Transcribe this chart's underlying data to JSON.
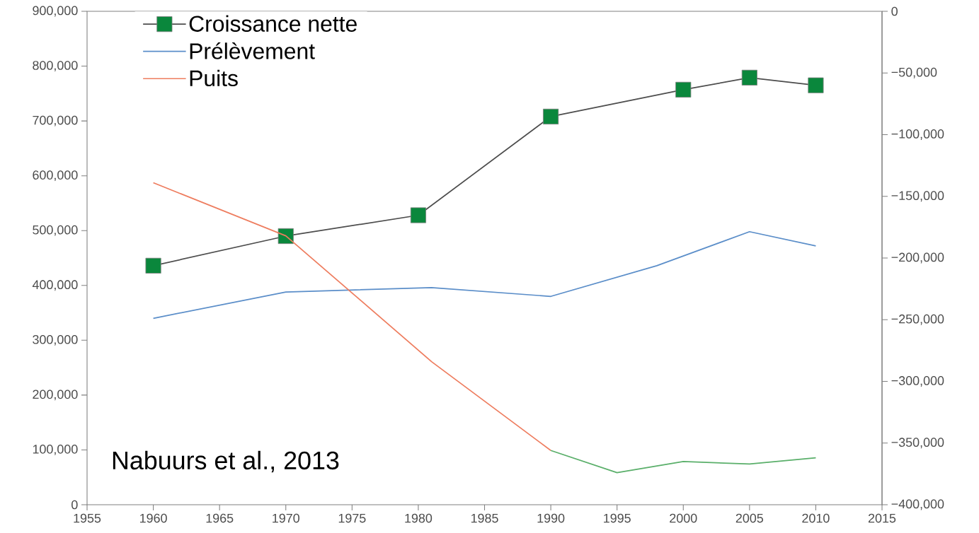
{
  "chart_data": {
    "type": "line",
    "xlim": [
      1955,
      2015
    ],
    "xticks": [
      1955,
      1960,
      1965,
      1970,
      1975,
      1980,
      1985,
      1990,
      1995,
      2000,
      2005,
      2010,
      2015
    ],
    "ylim": [
      0,
      900000
    ],
    "yticks": [
      {
        "value": 0,
        "label": "0"
      },
      {
        "value": 100000,
        "label": "100,000"
      },
      {
        "value": 200000,
        "label": "200,000"
      },
      {
        "value": 300000,
        "label": "300,000"
      },
      {
        "value": 400000,
        "label": "400,000"
      },
      {
        "value": 500000,
        "label": "500,000"
      },
      {
        "value": 600000,
        "label": "600,000"
      },
      {
        "value": 700000,
        "label": "700,000"
      },
      {
        "value": 800000,
        "label": "800,000"
      },
      {
        "value": 900000,
        "label": "900,000"
      }
    ],
    "y2lim": [
      -400000,
      0
    ],
    "y2ticks": [
      {
        "value": -400000,
        "label": "−400,000"
      },
      {
        "value": -350000,
        "label": "−350,000"
      },
      {
        "value": -300000,
        "label": "−300,000"
      },
      {
        "value": -250000,
        "label": "−250,000"
      },
      {
        "value": -200000,
        "label": "−200,000"
      },
      {
        "value": -150000,
        "label": "−150,000"
      },
      {
        "value": -100000,
        "label": "−100,000"
      },
      {
        "value": -50000,
        "label": "−50,000"
      },
      {
        "value": 0,
        "label": "0"
      }
    ],
    "series": [
      {
        "name": "Croissance nette",
        "color": "#4d4d4d",
        "marker": "square",
        "x": [
          1960,
          1970,
          1980,
          1990,
          2000,
          2005,
          2010
        ],
        "values": [
          436000,
          490000,
          528000,
          708000,
          757000,
          779000,
          765000
        ]
      },
      {
        "name": "Prélèvement",
        "color": "#5b8ec9",
        "x": [
          1960,
          1970,
          1981,
          1990,
          1998,
          2005,
          2010
        ],
        "values": [
          340000,
          388000,
          396000,
          380000,
          436000,
          498000,
          472000
        ]
      },
      {
        "name": "Puits",
        "color": "#ee7d5f",
        "axis": "y2",
        "x": [
          1960,
          1970,
          1981,
          1990
        ],
        "values": [
          -139000,
          -182000,
          -284000,
          -356000
        ]
      },
      {
        "color": "#5aaf6a",
        "axis": "y2",
        "x": [
          1990,
          1995,
          2000,
          2005,
          2010
        ],
        "values": [
          -356000,
          -374000,
          -365000,
          -367000,
          -362000
        ]
      }
    ],
    "legend": "top left",
    "grid": false,
    "annotations": [
      "Nabuurs et al., 2013"
    ]
  }
}
